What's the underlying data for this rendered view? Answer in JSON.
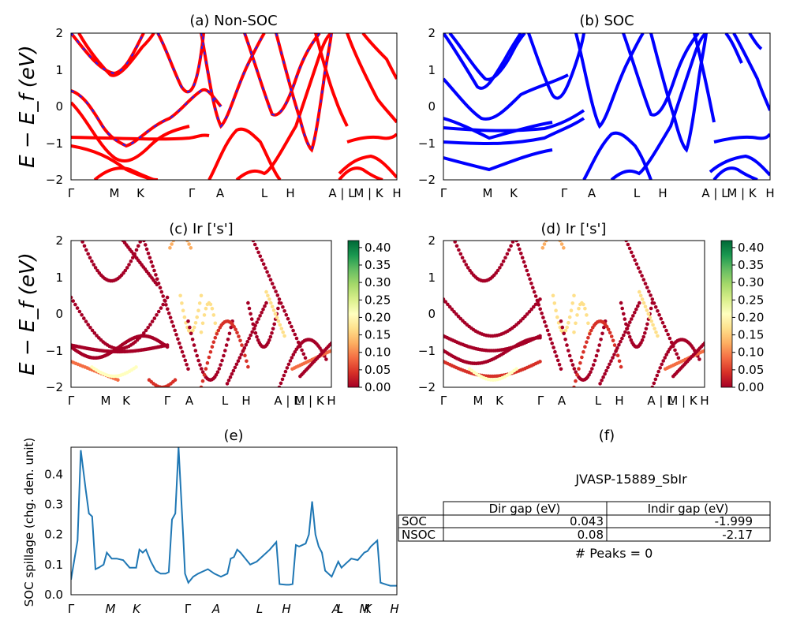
{
  "figure": {
    "ylabel_bands": "E − E_f (eV)",
    "ylabel_spillage": "SOC spillage (chg. den. unit)",
    "kpath_labels": [
      "Γ",
      "M",
      "K",
      "Γ",
      "A",
      "L",
      "H",
      "A | L",
      "M | K",
      "H"
    ],
    "spillage_kpath_labels": [
      "Γ",
      "M",
      "K",
      "Γ",
      "A",
      "L",
      "H",
      "A",
      "L",
      "M",
      "K",
      "H"
    ]
  },
  "colorbar": {
    "ticks": [
      "0.00",
      "0.05",
      "0.10",
      "0.15",
      "0.20",
      "0.25",
      "0.30",
      "0.35",
      "0.40"
    ],
    "colors": [
      "#a50026",
      "#d73027",
      "#f46d43",
      "#fdae61",
      "#fee08b",
      "#ffffbf",
      "#d9ef8b",
      "#a6d96a",
      "#66bd63",
      "#1a9850",
      "#006837"
    ]
  },
  "panels": {
    "a": {
      "title": "(a) Non-SOC"
    },
    "b": {
      "title": "(b) SOC"
    },
    "c": {
      "title": "(c)  Ir ['s']"
    },
    "d": {
      "title": "(d) Ir ['s']"
    },
    "e": {
      "title": "(e)"
    },
    "f": {
      "title": "(f)",
      "material": "JVASP-15889_SbIr",
      "table": {
        "headers": [
          "Dir gap (eV)",
          "Indir gap (eV)"
        ],
        "rows": [
          {
            "label": "SOC",
            "dir": "0.043",
            "indir": "-1.999"
          },
          {
            "label": "NSOC",
            "dir": "0.08",
            "indir": "-2.17"
          }
        ]
      },
      "peaks": "# Peaks = 0"
    }
  },
  "chart_data": [
    {
      "type": "line",
      "title": "(a) Non-SOC",
      "ylabel": "E − E_f (eV)",
      "ylim": [
        -2,
        2
      ],
      "yticks": [
        -2,
        -1,
        0,
        1,
        2
      ],
      "xtick_labels": [
        "Γ",
        "M",
        "K",
        "Γ",
        "A",
        "L",
        "H",
        "A | L",
        "M | K",
        "H"
      ],
      "series": [
        {
          "color": "#ff0000",
          "style": "solid",
          "bands": [
            [
              0.5,
              0.2,
              -0.3,
              -0.8,
              -1.0,
              -0.85,
              -0.6,
              -0.2,
              0.3,
              0.45,
              0.5
            ],
            [
              -0.85,
              -0.85,
              -0.9,
              -1.0,
              -1.05,
              -1.0,
              -0.95,
              -0.9,
              -0.88,
              -0.85,
              -0.85
            ],
            [
              2.0,
              1.6,
              1.1,
              0.9,
              1.2,
              1.8,
              2.0
            ]
          ]
        },
        {
          "color": "#0000ff",
          "style": "dashed",
          "bands": []
        }
      ]
    },
    {
      "type": "line",
      "title": "(b) SOC",
      "ylabel": "E − E_f (eV)",
      "ylim": [
        -2,
        2
      ],
      "yticks": [
        -2,
        -1,
        0,
        1,
        2
      ],
      "xtick_labels": [
        "Γ",
        "M",
        "K",
        "Γ",
        "A",
        "L",
        "H",
        "A | L",
        "M | K",
        "H"
      ],
      "series": [
        {
          "color": "#0000ff"
        }
      ]
    },
    {
      "type": "scatter",
      "title": "(c)  Ir ['s']",
      "ylabel": "E − E_f (eV)",
      "ylim": [
        -2,
        2
      ],
      "yticks": [
        -2,
        -1,
        0,
        1,
        2
      ],
      "colorbar_range": [
        0.0,
        0.42
      ],
      "xtick_labels": [
        "Γ",
        "M",
        "K",
        "Γ",
        "A",
        "L",
        "H",
        "A | L",
        "M | K",
        "H"
      ]
    },
    {
      "type": "scatter",
      "title": "(d) Ir ['s']",
      "ylim": [
        -2,
        2
      ],
      "yticks": [
        -2,
        -1,
        0,
        1,
        2
      ],
      "colorbar_range": [
        0.0,
        0.42
      ],
      "xtick_labels": [
        "Γ",
        "M",
        "K",
        "Γ",
        "A",
        "L",
        "H",
        "A | L",
        "M | K",
        "H"
      ]
    },
    {
      "type": "line",
      "title": "(e)",
      "ylabel": "SOC spillage (chg. den. unit)",
      "ylim": [
        0,
        0.49
      ],
      "yticks": [
        0.0,
        0.1,
        0.2,
        0.3,
        0.4
      ],
      "xtick_labels": [
        "Γ",
        "M",
        "K",
        "Γ",
        "A",
        "L",
        "H",
        "A",
        "L",
        "M",
        "K",
        "H"
      ],
      "x": [
        0,
        0.02,
        0.03,
        0.045,
        0.055,
        0.065,
        0.075,
        0.085,
        0.1,
        0.11,
        0.125,
        0.14,
        0.16,
        0.18,
        0.2,
        0.21,
        0.22,
        0.23,
        0.245,
        0.26,
        0.275,
        0.29,
        0.3,
        0.31,
        0.32,
        0.33,
        0.345,
        0.35,
        0.36,
        0.375,
        0.39,
        0.4,
        0.42,
        0.44,
        0.46,
        0.48,
        0.49,
        0.5,
        0.51,
        0.52,
        0.535,
        0.55,
        0.57,
        0.59,
        0.61,
        0.63,
        0.64,
        0.66,
        0.67,
        0.68,
        0.69,
        0.7,
        0.72,
        0.73,
        0.74,
        0.75,
        0.76,
        0.77,
        0.78,
        0.8,
        0.82,
        0.83,
        0.84,
        0.86,
        0.88,
        0.9,
        0.91,
        0.92,
        0.94,
        0.95,
        0.97,
        0.98,
        1.0
      ],
      "y": [
        0.05,
        0.18,
        0.48,
        0.35,
        0.27,
        0.26,
        0.085,
        0.09,
        0.1,
        0.14,
        0.12,
        0.12,
        0.115,
        0.09,
        0.09,
        0.15,
        0.14,
        0.15,
        0.11,
        0.08,
        0.07,
        0.07,
        0.075,
        0.25,
        0.27,
        0.49,
        0.18,
        0.07,
        0.04,
        0.06,
        0.07,
        0.075,
        0.085,
        0.07,
        0.06,
        0.07,
        0.12,
        0.125,
        0.15,
        0.14,
        0.12,
        0.1,
        0.11,
        0.13,
        0.15,
        0.175,
        0.035,
        0.033,
        0.033,
        0.035,
        0.165,
        0.16,
        0.17,
        0.2,
        0.31,
        0.2,
        0.16,
        0.14,
        0.08,
        0.06,
        0.11,
        0.09,
        0.1,
        0.12,
        0.115,
        0.14,
        0.145,
        0.16,
        0.18,
        0.04,
        0.033,
        0.03,
        0.03
      ],
      "color": "#1f77b4"
    }
  ]
}
